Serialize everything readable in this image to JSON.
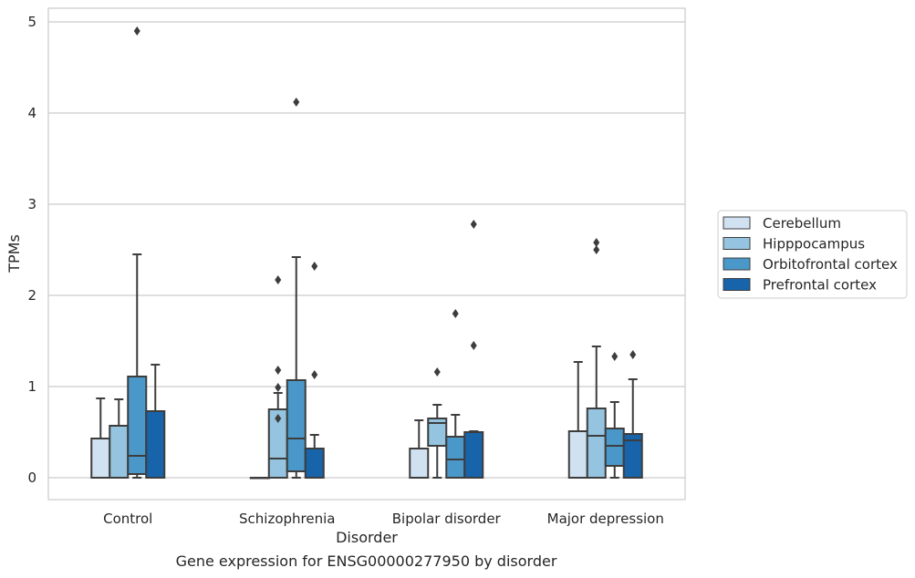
{
  "chart_data": {
    "type": "box",
    "title": "",
    "xlabel": "Disorder",
    "ylabel": "TPMs",
    "caption": "Gene expression for ENSG00000277950 by disorder",
    "categories": [
      "Control",
      "Schizophrenia",
      "Bipolar disorder",
      "Major depression"
    ],
    "ylim": [
      -0.24,
      5.15
    ],
    "yticks": [
      0,
      1,
      2,
      3,
      4,
      5
    ],
    "ytick_labels": [
      "0",
      "1",
      "2",
      "3",
      "4",
      "5"
    ],
    "grid": "horizontal",
    "legend_position": "right",
    "series": [
      {
        "name": "Cerebellum",
        "color": "#d0e1f2",
        "boxes": [
          {
            "q1": 0.0,
            "median": 0.0,
            "q3": 0.43,
            "whisker_low": 0.0,
            "whisker_high": 0.87,
            "outliers": []
          },
          {
            "q1": 0.0,
            "median": 0.0,
            "q3": 0.0,
            "whisker_low": 0.0,
            "whisker_high": 0.0,
            "outliers": []
          },
          {
            "q1": 0.0,
            "median": 0.0,
            "q3": 0.32,
            "whisker_low": 0.0,
            "whisker_high": 0.63,
            "outliers": []
          },
          {
            "q1": 0.0,
            "median": 0.0,
            "q3": 0.51,
            "whisker_low": 0.0,
            "whisker_high": 1.27,
            "outliers": []
          }
        ]
      },
      {
        "name": "Hipppocampus",
        "color": "#94c4df",
        "boxes": [
          {
            "q1": 0.0,
            "median": 0.0,
            "q3": 0.57,
            "whisker_low": 0.0,
            "whisker_high": 0.86,
            "outliers": []
          },
          {
            "q1": 0.0,
            "median": 0.21,
            "q3": 0.75,
            "whisker_low": 0.0,
            "whisker_high": 0.93,
            "outliers": [
              0.65,
              0.99,
              1.18,
              2.17
            ]
          },
          {
            "q1": 0.35,
            "median": 0.6,
            "q3": 0.65,
            "whisker_low": 0.0,
            "whisker_high": 0.8,
            "outliers": [
              1.16
            ]
          },
          {
            "q1": 0.0,
            "median": 0.46,
            "q3": 0.76,
            "whisker_low": 0.0,
            "whisker_high": 1.44,
            "outliers": [
              2.5,
              2.58
            ]
          }
        ]
      },
      {
        "name": "Orbitofrontal cortex",
        "color": "#4a98c9",
        "boxes": [
          {
            "q1": 0.04,
            "median": 0.24,
            "q3": 1.11,
            "whisker_low": 0.0,
            "whisker_high": 2.45,
            "outliers": [
              4.9
            ]
          },
          {
            "q1": 0.07,
            "median": 0.43,
            "q3": 1.07,
            "whisker_low": 0.0,
            "whisker_high": 2.42,
            "outliers": [
              4.12
            ]
          },
          {
            "q1": 0.0,
            "median": 0.2,
            "q3": 0.45,
            "whisker_low": 0.0,
            "whisker_high": 0.69,
            "outliers": [
              1.8
            ]
          },
          {
            "q1": 0.13,
            "median": 0.35,
            "q3": 0.54,
            "whisker_low": 0.0,
            "whisker_high": 0.83,
            "outliers": [
              1.33
            ]
          }
        ]
      },
      {
        "name": "Prefrontal cortex",
        "color": "#1764ab",
        "boxes": [
          {
            "q1": 0.0,
            "median": 0.0,
            "q3": 0.73,
            "whisker_low": 0.0,
            "whisker_high": 1.24,
            "outliers": []
          },
          {
            "q1": 0.0,
            "median": 0.0,
            "q3": 0.32,
            "whisker_low": 0.0,
            "whisker_high": 0.47,
            "outliers": [
              1.13,
              2.32
            ]
          },
          {
            "q1": 0.0,
            "median": 0.0,
            "q3": 0.5,
            "whisker_low": 0.0,
            "whisker_high": 0.51,
            "outliers": [
              1.45,
              2.78
            ]
          },
          {
            "q1": 0.0,
            "median": 0.41,
            "q3": 0.48,
            "whisker_low": 0.0,
            "whisker_high": 1.08,
            "outliers": [
              1.35
            ]
          }
        ]
      }
    ]
  }
}
